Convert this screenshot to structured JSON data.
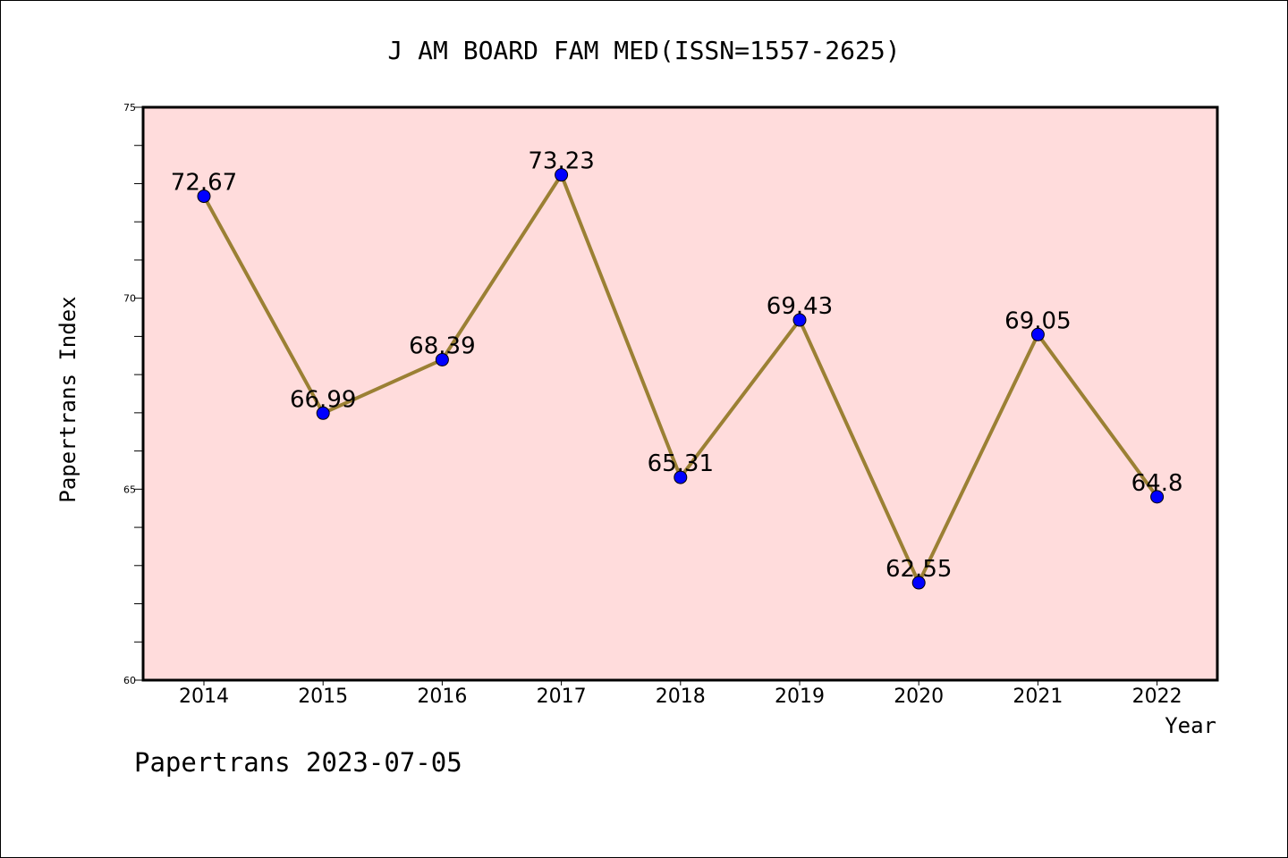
{
  "chart_data": {
    "type": "line",
    "title": "J AM BOARD FAM MED(ISSN=1557-2625)",
    "xlabel": "Year",
    "ylabel": "Papertrans Index",
    "categories": [
      "2014",
      "2015",
      "2016",
      "2017",
      "2018",
      "2019",
      "2020",
      "2021",
      "2022"
    ],
    "series": [
      {
        "values": [
          72.67,
          66.99,
          68.39,
          73.23,
          65.31,
          69.43,
          62.55,
          69.05,
          64.8
        ],
        "labels": [
          "72.67",
          "66.99",
          "68.39",
          "73.23",
          "65.31",
          "69.43",
          "62.55",
          "69.05",
          "64.8"
        ]
      }
    ],
    "ylim": [
      60,
      75
    ],
    "yticks": [
      "60",
      "65",
      "70",
      "75"
    ],
    "grid": false,
    "legend": "none",
    "colors": {
      "plot_background": "#ffdcdc",
      "line": "#9b8034",
      "marker": "#0000ff"
    }
  },
  "footer": {
    "text": "Papertrans 2023-07-05"
  }
}
